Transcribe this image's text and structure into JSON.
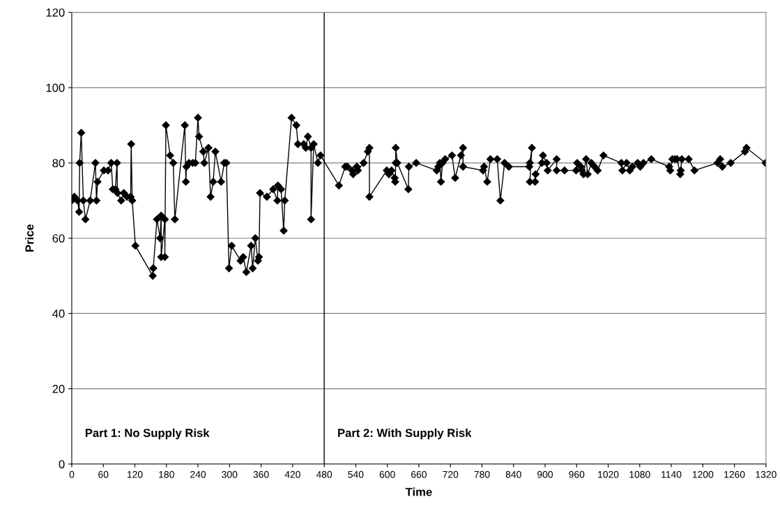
{
  "chart_data": {
    "type": "line",
    "xlabel": "Time",
    "ylabel": "Price",
    "xlim": [
      0,
      1320
    ],
    "ylim": [
      0,
      120
    ],
    "xticks": [
      0,
      60,
      120,
      180,
      240,
      300,
      360,
      420,
      480,
      540,
      600,
      660,
      720,
      780,
      840,
      900,
      960,
      1020,
      1080,
      1140,
      1200,
      1260,
      1320
    ],
    "yticks": [
      0,
      20,
      40,
      60,
      80,
      100,
      120
    ],
    "grid": "y",
    "marker": "diamond",
    "line_style": "solid",
    "ref_lines": [
      {
        "axis": "x",
        "value": 480,
        "color": "#000000"
      }
    ],
    "annotations": [
      "Part 1: No Supply Risk",
      "Part 2: With Supply Risk"
    ],
    "series": [
      {
        "color": "#000000",
        "x": [
          0,
          5,
          11,
          14,
          15,
          18,
          22,
          26,
          35,
          45,
          47,
          49,
          61,
          69,
          75,
          78,
          83,
          86,
          87,
          94,
          99,
          105,
          112,
          113,
          115,
          121,
          154,
          155,
          162,
          168,
          170,
          170,
          177,
          177,
          179,
          187,
          193,
          196,
          215,
          217,
          218,
          223,
          230,
          235,
          240,
          242,
          250,
          252,
          260,
          264,
          269,
          273,
          284,
          290,
          294,
          299,
          304,
          321,
          326,
          332,
          341,
          344,
          349,
          354,
          356,
          358,
          371,
          383,
          391,
          392,
          398,
          403,
          405,
          418,
          427,
          430,
          441,
          445,
          449,
          455,
          455,
          460,
          468,
          473,
          508,
          520,
          524,
          533,
          535,
          542,
          544,
          555,
          563,
          566,
          566,
          599,
          603,
          608,
          614,
          615,
          616,
          616,
          619,
          640,
          641,
          655,
          694,
          697,
          700,
          702,
          705,
          710,
          723,
          729,
          740,
          744,
          744,
          782,
          784,
          790,
          796,
          809,
          815,
          823,
          831,
          870,
          871,
          875,
          871,
          881,
          882,
          894,
          896,
          903,
          905,
          922,
          922,
          937,
          959,
          961,
          968,
          970,
          973,
          978,
          981,
          988,
          994,
          1000,
          1011,
          1045,
          1047,
          1055,
          1061,
          1066,
          1076,
          1081,
          1087,
          1102,
          1136,
          1138,
          1142,
          1147,
          1151,
          1157,
          1158,
          1160,
          1173,
          1184,
          1228,
          1233,
          1237,
          1253,
          1280,
          1283,
          1319
        ],
        "values": [
          70,
          71,
          70,
          67,
          80,
          88,
          70,
          65,
          70,
          80,
          70,
          75,
          78,
          78,
          80,
          73,
          73,
          80,
          72,
          70,
          72,
          71,
          71,
          85,
          70,
          58,
          50,
          52,
          65,
          60,
          66,
          55,
          65,
          55,
          90,
          82,
          80,
          65,
          90,
          75,
          79,
          80,
          80,
          80,
          92,
          87,
          83,
          80,
          84,
          71,
          75,
          83,
          75,
          80,
          80,
          52,
          58,
          54,
          55,
          51,
          58,
          52,
          60,
          54,
          55,
          72,
          71,
          73,
          70,
          74,
          73,
          62,
          70,
          92,
          90,
          85,
          85,
          84,
          87,
          84,
          65,
          85,
          80,
          82,
          74,
          79,
          79,
          78,
          77,
          79,
          78,
          80,
          83,
          84,
          71,
          78,
          77,
          78,
          76,
          75,
          80,
          84,
          80,
          73,
          79,
          80,
          78,
          79,
          80,
          75,
          80,
          81,
          82,
          76,
          82,
          84,
          79,
          78,
          79,
          75,
          81,
          81,
          70,
          80,
          79,
          79,
          80,
          84,
          75,
          75,
          77,
          80,
          82,
          80,
          78,
          81,
          78,
          78,
          78,
          80,
          79,
          78,
          77,
          81,
          77,
          80,
          79,
          78,
          82,
          80,
          78,
          80,
          78,
          79,
          80,
          79,
          80,
          81,
          79,
          78,
          81,
          81,
          81,
          77,
          78,
          81,
          81,
          78,
          80,
          81,
          79,
          80,
          83,
          84,
          80
        ]
      }
    ]
  }
}
